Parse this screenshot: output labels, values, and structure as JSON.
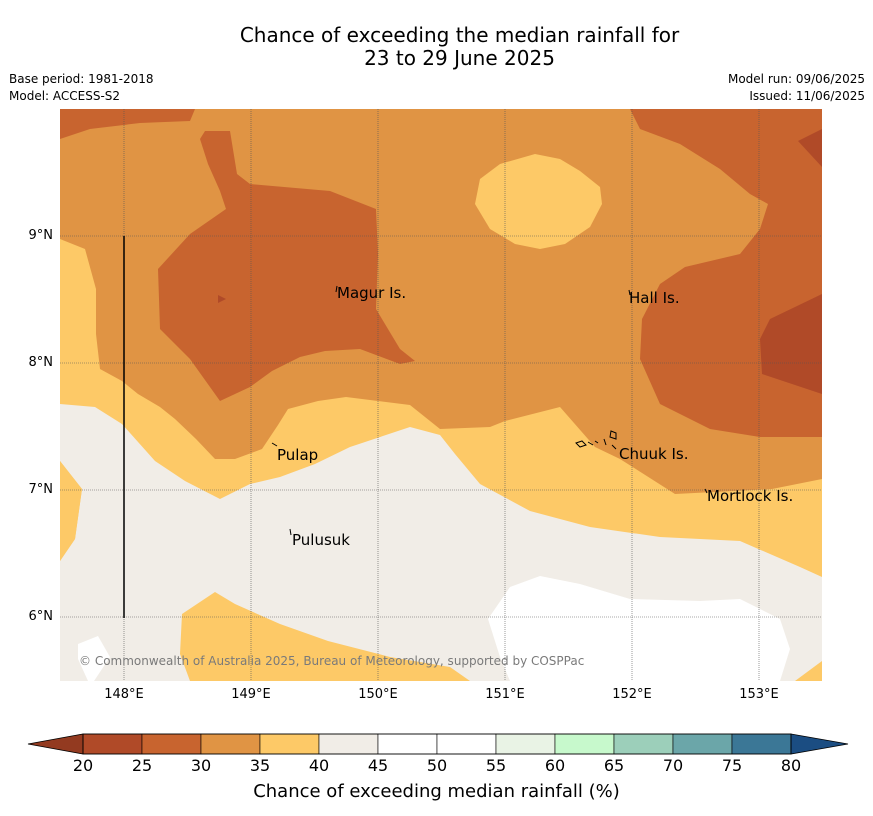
{
  "title": {
    "line1": "Chance of exceeding the median rainfall for",
    "line2": "23 to 29 June 2025"
  },
  "meta": {
    "base_period": "Base period: 1981-2018",
    "model": "Model: ACCESS-S2",
    "model_run": "Model run: 09/06/2025",
    "issued": "Issued: 11/06/2025"
  },
  "map": {
    "copyright": "© Commonwealth of Australia 2025, Bureau of Meteorology, supported by COSPPac",
    "places": [
      "Magur Is.",
      "Hall Is.",
      "Pulap",
      "Chuuk Is.",
      "Mortlock Is.",
      "Pulusuk"
    ],
    "lat_labels": [
      "9°N",
      "8°N",
      "7°N",
      "6°N"
    ],
    "lon_labels": [
      "148°E",
      "149°E",
      "150°E",
      "151°E",
      "152°E",
      "153°E"
    ]
  },
  "colorbar": {
    "ticks": [
      "20",
      "25",
      "30",
      "35",
      "40",
      "45",
      "50",
      "55",
      "60",
      "65",
      "70",
      "75",
      "80"
    ],
    "colors": [
      "#b04a28",
      "#c8642f",
      "#e09444",
      "#fdc967",
      "#f1ede7",
      "#ffffff",
      "#ffffff",
      "#e9f3e5",
      "#c7f9cc",
      "#9ccfba",
      "#6ba6a9",
      "#3b7796"
    ],
    "low_extend": "#933a20",
    "high_extend": "#1b4d82",
    "label": "Chance of exceeding median rainfall (%)"
  }
}
